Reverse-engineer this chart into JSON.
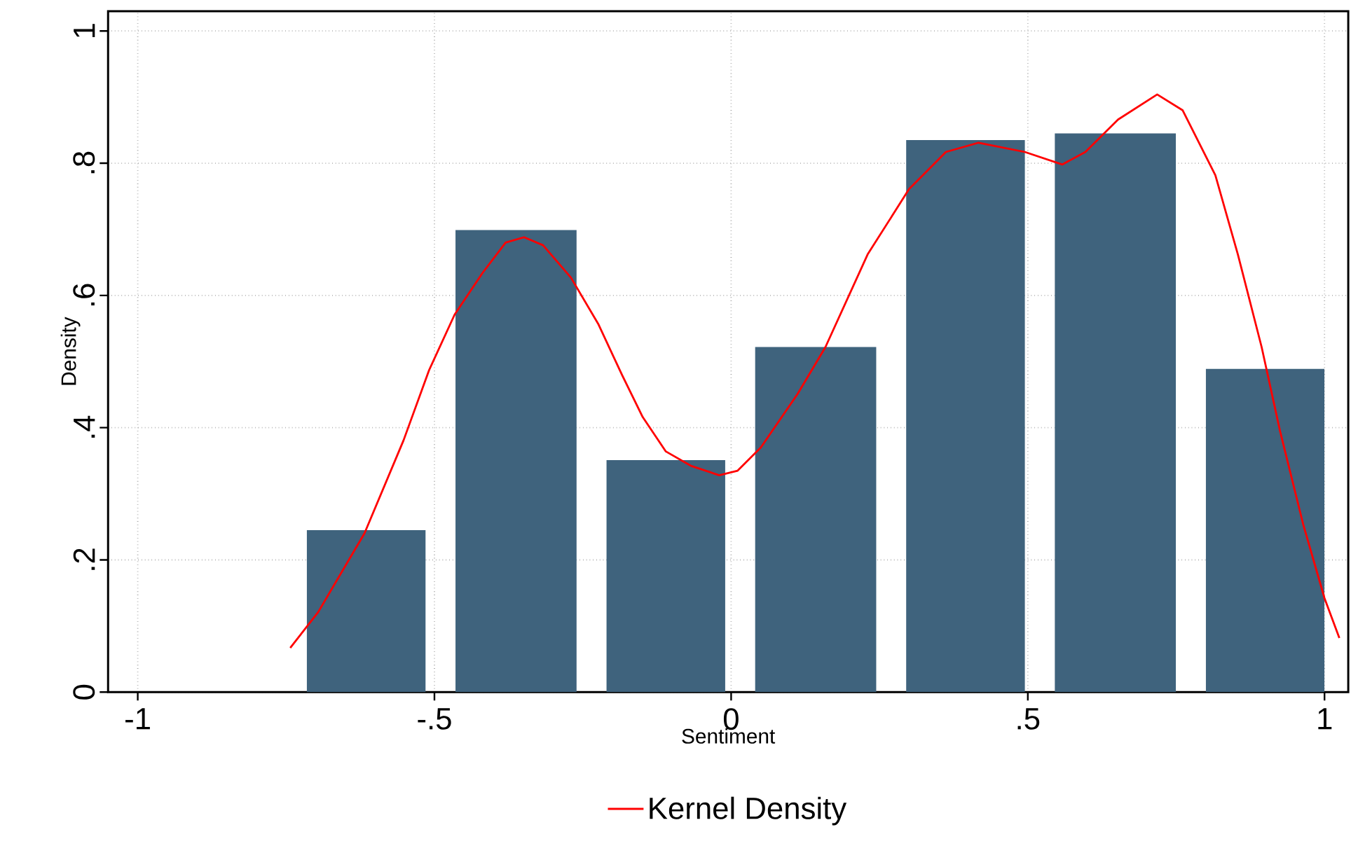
{
  "chart_data": {
    "type": "histogram",
    "xlabel": "Sentiment",
    "ylabel": "Density",
    "bins": [
      -0.74,
      -0.49,
      -0.235,
      0.015,
      0.27,
      0.52,
      0.775,
      1.025
    ],
    "values": [
      0.245,
      0.699,
      0.351,
      0.522,
      0.835,
      0.845,
      0.489
    ],
    "color": "#3f637d",
    "series": [
      {
        "type": "line",
        "name": "Kernel Density",
        "color": "#ff0000",
        "x": [
          -0.743,
          -0.696,
          -0.618,
          -0.552,
          -0.509,
          -0.466,
          -0.419,
          -0.38,
          -0.349,
          -0.317,
          -0.27,
          -0.224,
          -0.184,
          -0.149,
          -0.11,
          -0.067,
          -0.02,
          0.011,
          0.05,
          0.112,
          0.159,
          0.23,
          0.3,
          0.362,
          0.417,
          0.495,
          0.558,
          0.597,
          0.652,
          0.718,
          0.761,
          0.816,
          0.854,
          0.894,
          0.925,
          0.964,
          1.0,
          1.025
        ],
        "values": [
          0.067,
          0.121,
          0.24,
          0.381,
          0.487,
          0.571,
          0.634,
          0.68,
          0.688,
          0.676,
          0.627,
          0.557,
          0.48,
          0.416,
          0.364,
          0.342,
          0.328,
          0.335,
          0.37,
          0.451,
          0.522,
          0.662,
          0.761,
          0.817,
          0.831,
          0.817,
          0.798,
          0.817,
          0.866,
          0.904,
          0.88,
          0.782,
          0.662,
          0.522,
          0.395,
          0.254,
          0.142,
          0.082
        ]
      }
    ],
    "xlim": [
      -1.05,
      1.04
    ],
    "ylim": [
      0,
      1.03
    ],
    "xticks": [
      {
        "value": -1,
        "label": "-1"
      },
      {
        "value": -0.5,
        "label": "-.5"
      },
      0,
      {
        "value": 0.5,
        "label": ".5"
      },
      1
    ],
    "yticks": [
      0,
      {
        "value": 0.2,
        "label": ".2"
      },
      {
        "value": 0.4,
        "label": ".4"
      },
      {
        "value": 0.6,
        "label": ".6"
      },
      {
        "value": 0.8,
        "label": ".8"
      },
      1
    ],
    "grid": true,
    "legend": "bottom"
  }
}
